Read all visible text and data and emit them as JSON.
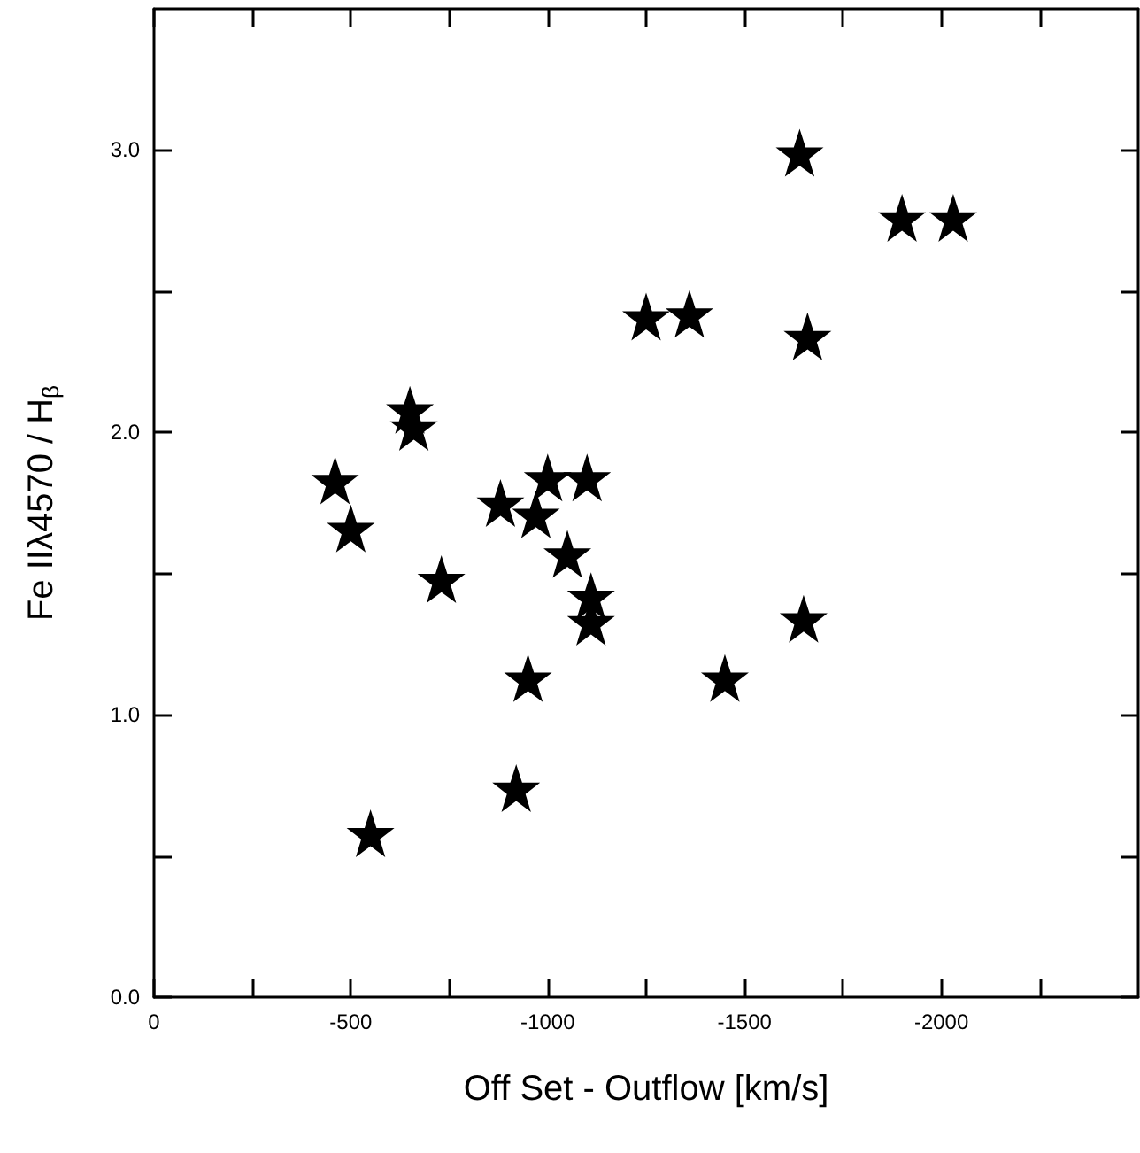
{
  "chart_data": {
    "type": "scatter",
    "xlabel": "Off Set - Outflow [km/s]",
    "ylabel": "Fe IIλ4570 / H$_{β}$",
    "marker": "star",
    "grid": false,
    "series": [
      {
        "color": "#000000",
        "x": [
          -650,
          -660,
          -460,
          -500,
          -730,
          -880,
          -1000,
          -1100,
          -970,
          -1050,
          -1110,
          -1110,
          -950,
          -920,
          -550,
          -1640,
          -1900,
          -2030,
          -1250,
          -1360,
          -1660,
          -1650,
          -1450
        ],
        "values": [
          2.08,
          2.02,
          1.83,
          1.66,
          1.48,
          1.75,
          1.84,
          1.84,
          1.71,
          1.57,
          1.42,
          1.33,
          1.13,
          0.74,
          0.58,
          2.99,
          2.76,
          2.76,
          2.41,
          2.42,
          2.34,
          1.34,
          1.13
        ]
      }
    ],
    "xlim": [
      0,
      -2500
    ],
    "ylim": [
      0,
      3.5
    ],
    "xticks": [
      0,
      {
        "value": -250,
        "label": null
      },
      -500,
      {
        "value": -750,
        "label": null
      },
      -1000,
      {
        "value": -1250,
        "label": null
      },
      -1500,
      {
        "value": -1750,
        "label": null
      },
      -2000,
      {
        "value": -2250,
        "label": null
      }
    ],
    "yticks": [
      {
        "value": 0,
        "label": "0.0"
      },
      {
        "value": 0.5,
        "label": null
      },
      {
        "value": 1,
        "label": "1.0"
      },
      {
        "value": 1.5,
        "label": null
      },
      {
        "value": 2,
        "label": "2.0"
      },
      {
        "value": 2.5,
        "label": null
      },
      {
        "value": 3,
        "label": "3.0"
      }
    ]
  }
}
